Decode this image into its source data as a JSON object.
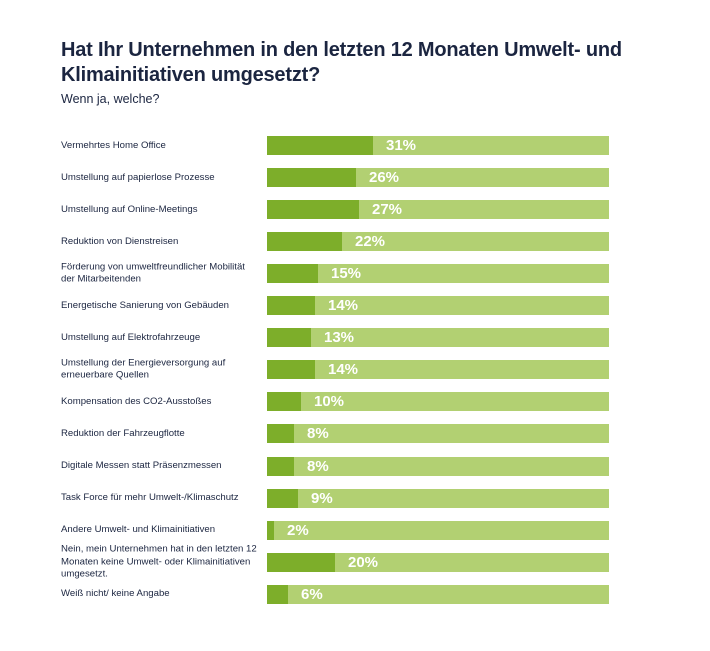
{
  "header": {
    "title": "Hat Ihr Unternehmen in den letzten 12 Monaten Umwelt- und Klimainitiativen umgesetzt?",
    "subtitle": "Wenn ja, welche?"
  },
  "colors": {
    "fill": "#7dae2a",
    "track": "#b2d072",
    "text": "#1b2540",
    "value_text": "#ffffff"
  },
  "chart_data": {
    "type": "bar",
    "orientation": "horizontal",
    "title": "Hat Ihr Unternehmen in den letzten 12 Monaten Umwelt- und Klimainitiativen umgesetzt?",
    "subtitle": "Wenn ja, welche?",
    "xlabel": "",
    "ylabel": "",
    "xlim": [
      0,
      100
    ],
    "unit": "%",
    "grid": false,
    "legend": "none",
    "categories": [
      "Vermehrtes Home Office",
      "Umstellung auf papierlose Prozesse",
      "Umstellung auf Online-Meetings",
      "Reduktion von Dienstreisen",
      "Förderung von umweltfreundlicher Mobilität der Mitarbeitenden",
      "Energetische Sanierung von Gebäuden",
      "Umstellung auf Elektrofahrzeuge",
      "Umstellung der Energieversorgung auf erneuerbare Quellen",
      "Kompensation des CO2-Ausstoßes",
      "Reduktion der Fahrzeugflotte",
      "Digitale Messen statt Präsenzmessen",
      "Task Force für mehr Umwelt-/Klimaschutz",
      "Andere Umwelt- und Klimainitiativen",
      "Nein, mein Unternehmen hat in den letzten 12 Monaten keine Umwelt- oder Klimainitiativen umgesetzt.",
      "Weiß nicht/ keine Angabe"
    ],
    "values": [
      31,
      26,
      27,
      22,
      15,
      14,
      13,
      14,
      10,
      8,
      8,
      9,
      2,
      20,
      6
    ],
    "value_labels": [
      "31%",
      "26%",
      "27%",
      "22%",
      "15%",
      "14%",
      "13%",
      "14%",
      "10%",
      "8%",
      "8%",
      "9%",
      "2%",
      "20%",
      "6%"
    ]
  }
}
